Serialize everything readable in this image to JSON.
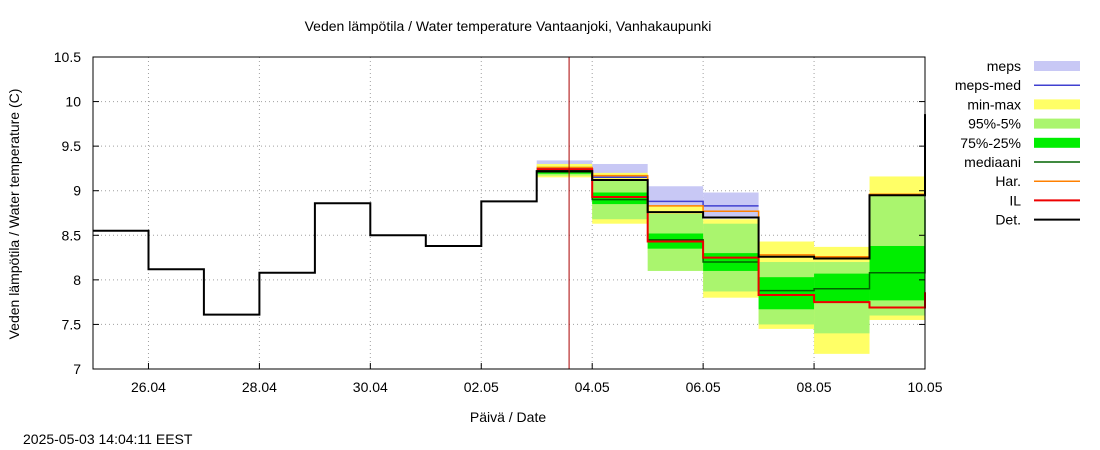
{
  "chart_data": {
    "type": "line",
    "title": "Veden lämpötila / Water temperature Vantaanjoki, Vanhakaupunki",
    "xlabel": "Päivä / Date",
    "ylabel": "Veden lämpötila / Water temperature (C)",
    "timestamp": "2025-05-03 14:04:11 EEST",
    "grid": true,
    "legend_position": "right",
    "xlim": [
      "2025-04-25",
      "2025-05-10"
    ],
    "ylim": [
      7,
      10.5
    ],
    "x_ticks": [
      {
        "date": "2025-04-26",
        "label": "26.04"
      },
      {
        "date": "2025-04-28",
        "label": "28.04"
      },
      {
        "date": "2025-04-30",
        "label": "30.04"
      },
      {
        "date": "2025-05-02",
        "label": "02.05"
      },
      {
        "date": "2025-05-04",
        "label": "04.05"
      },
      {
        "date": "2025-05-06",
        "label": "06.05"
      },
      {
        "date": "2025-05-08",
        "label": "08.05"
      },
      {
        "date": "2025-05-10",
        "label": "10.05"
      }
    ],
    "y_ticks": [
      {
        "value": 7,
        "label": "7"
      },
      {
        "value": 7.5,
        "label": "7.5"
      },
      {
        "value": 8,
        "label": "8"
      },
      {
        "value": 8.5,
        "label": "8.5"
      },
      {
        "value": 9,
        "label": "9"
      },
      {
        "value": 9.5,
        "label": "9.5"
      },
      {
        "value": 10,
        "label": "10"
      },
      {
        "value": 10.5,
        "label": "10.5"
      }
    ],
    "now_marker": "2025-05-03 14:00",
    "band_day_starts": [
      "2025-05-03",
      "2025-05-04",
      "2025-05-05",
      "2025-05-06",
      "2025-05-07",
      "2025-05-08",
      "2025-05-09"
    ],
    "bands": [
      {
        "name": "meps",
        "color": "#c8c8f5",
        "low": [
          9.2,
          9.1,
          8.75,
          8.7,
          null,
          null,
          null
        ],
        "high": [
          9.34,
          9.3,
          9.05,
          8.98,
          null,
          null,
          null
        ]
      },
      {
        "name": "min-max",
        "color": "#ffff66",
        "low": [
          9.15,
          8.63,
          8.3,
          7.8,
          7.45,
          7.17,
          7.55
        ],
        "high": [
          9.3,
          9.2,
          8.83,
          8.68,
          8.43,
          8.37,
          9.16
        ]
      },
      {
        "name": "95%-5%",
        "color": "#aaf56e",
        "low": [
          9.17,
          8.68,
          8.1,
          7.87,
          7.5,
          7.4,
          7.6
        ],
        "high": [
          9.27,
          9.12,
          8.74,
          8.63,
          8.2,
          8.2,
          8.95
        ]
      },
      {
        "name": "75%-25%",
        "color": "#00ee00",
        "low": [
          9.19,
          8.85,
          8.35,
          8.1,
          7.67,
          7.75,
          7.77
        ],
        "high": [
          9.24,
          8.98,
          8.52,
          8.3,
          8.03,
          8.07,
          8.38
        ]
      }
    ],
    "series": [
      {
        "name": "meps-med",
        "color": "#4040d0",
        "x": [
          "2025-05-03",
          "2025-05-04",
          "2025-05-05",
          "2025-05-06",
          "2025-05-07"
        ],
        "y": [
          9.25,
          9.15,
          8.88,
          8.83,
          null
        ]
      },
      {
        "name": "mediaani",
        "color": "#006400",
        "x": [
          "2025-05-03",
          "2025-05-04",
          "2025-05-05",
          "2025-05-06",
          "2025-05-07",
          "2025-05-08",
          "2025-05-09",
          "2025-05-10"
        ],
        "y": [
          9.21,
          8.9,
          8.45,
          8.2,
          7.88,
          7.9,
          8.08,
          8.9
        ]
      },
      {
        "name": "Har.",
        "color": "#ff8000",
        "x": [
          "2025-05-03",
          "2025-05-04",
          "2025-05-05",
          "2025-05-06",
          "2025-05-07",
          "2025-05-08",
          "2025-05-09",
          "2025-05-10"
        ],
        "y": [
          9.26,
          9.17,
          8.83,
          8.77,
          8.28,
          8.26,
          8.96,
          9.86
        ]
      },
      {
        "name": "IL",
        "color": "#ee0000",
        "x": [
          "2025-05-03",
          "2025-05-04",
          "2025-05-05",
          "2025-05-06",
          "2025-05-07",
          "2025-05-08",
          "2025-05-09",
          "2025-05-10"
        ],
        "y": [
          9.24,
          8.93,
          8.43,
          8.25,
          7.83,
          7.75,
          7.69,
          7.86
        ]
      },
      {
        "name": "Det.",
        "color": "#000000",
        "x": [
          "2025-04-25",
          "2025-04-26",
          "2025-04-27",
          "2025-04-28",
          "2025-04-29",
          "2025-04-30",
          "2025-05-01",
          "2025-05-02",
          "2025-05-03",
          "2025-05-04",
          "2025-05-05",
          "2025-05-06",
          "2025-05-07",
          "2025-05-08",
          "2025-05-09",
          "2025-05-10"
        ],
        "y": [
          8.55,
          8.12,
          7.61,
          8.08,
          8.86,
          8.5,
          8.38,
          8.88,
          9.22,
          9.12,
          8.76,
          8.7,
          8.26,
          8.24,
          8.95,
          9.86
        ]
      }
    ],
    "legend": [
      {
        "label": "meps",
        "kind": "band",
        "color": "#c8c8f5"
      },
      {
        "label": "meps-med",
        "kind": "line",
        "color": "#4040d0"
      },
      {
        "label": "min-max",
        "kind": "band",
        "color": "#ffff66"
      },
      {
        "label": "95%-5%",
        "kind": "band",
        "color": "#aaf56e"
      },
      {
        "label": "75%-25%",
        "kind": "band",
        "color": "#00ee00"
      },
      {
        "label": "mediaani",
        "kind": "line",
        "color": "#006400"
      },
      {
        "label": "Har.",
        "kind": "line",
        "color": "#ff8000"
      },
      {
        "label": "IL",
        "kind": "line",
        "color": "#ee0000"
      },
      {
        "label": "Det.",
        "kind": "line",
        "color": "#000000"
      }
    ]
  }
}
